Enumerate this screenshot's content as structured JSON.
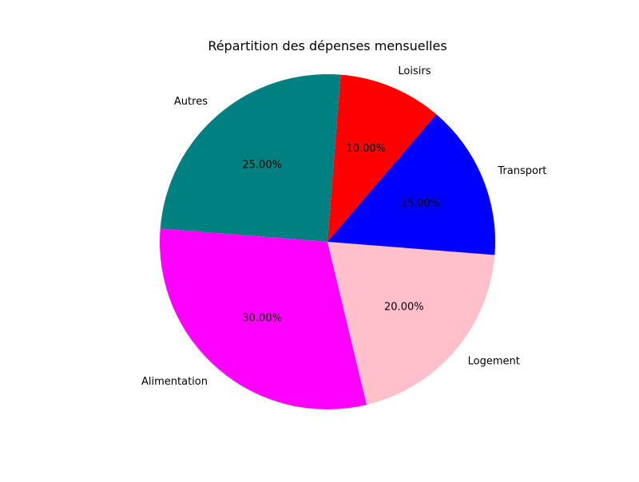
{
  "chart_data": {
    "type": "pie",
    "title": "Répartition des dépenses mensuelles",
    "start_angle_deg": 49.5,
    "direction": "counterclockwise",
    "slices": [
      {
        "label": "Loisirs",
        "value": 10,
        "pct_label": "10.00%",
        "color": "#ff0000"
      },
      {
        "label": "Autres",
        "value": 25,
        "pct_label": "25.00%",
        "color": "#008080"
      },
      {
        "label": "Alimentation",
        "value": 30,
        "pct_label": "30.00%",
        "color": "#ff00ff"
      },
      {
        "label": "Logement",
        "value": 20,
        "pct_label": "20.00%",
        "color": "#ffc0cb"
      },
      {
        "label": "Transport",
        "value": 15,
        "pct_label": "15.00%",
        "color": "#0000ff"
      }
    ]
  }
}
